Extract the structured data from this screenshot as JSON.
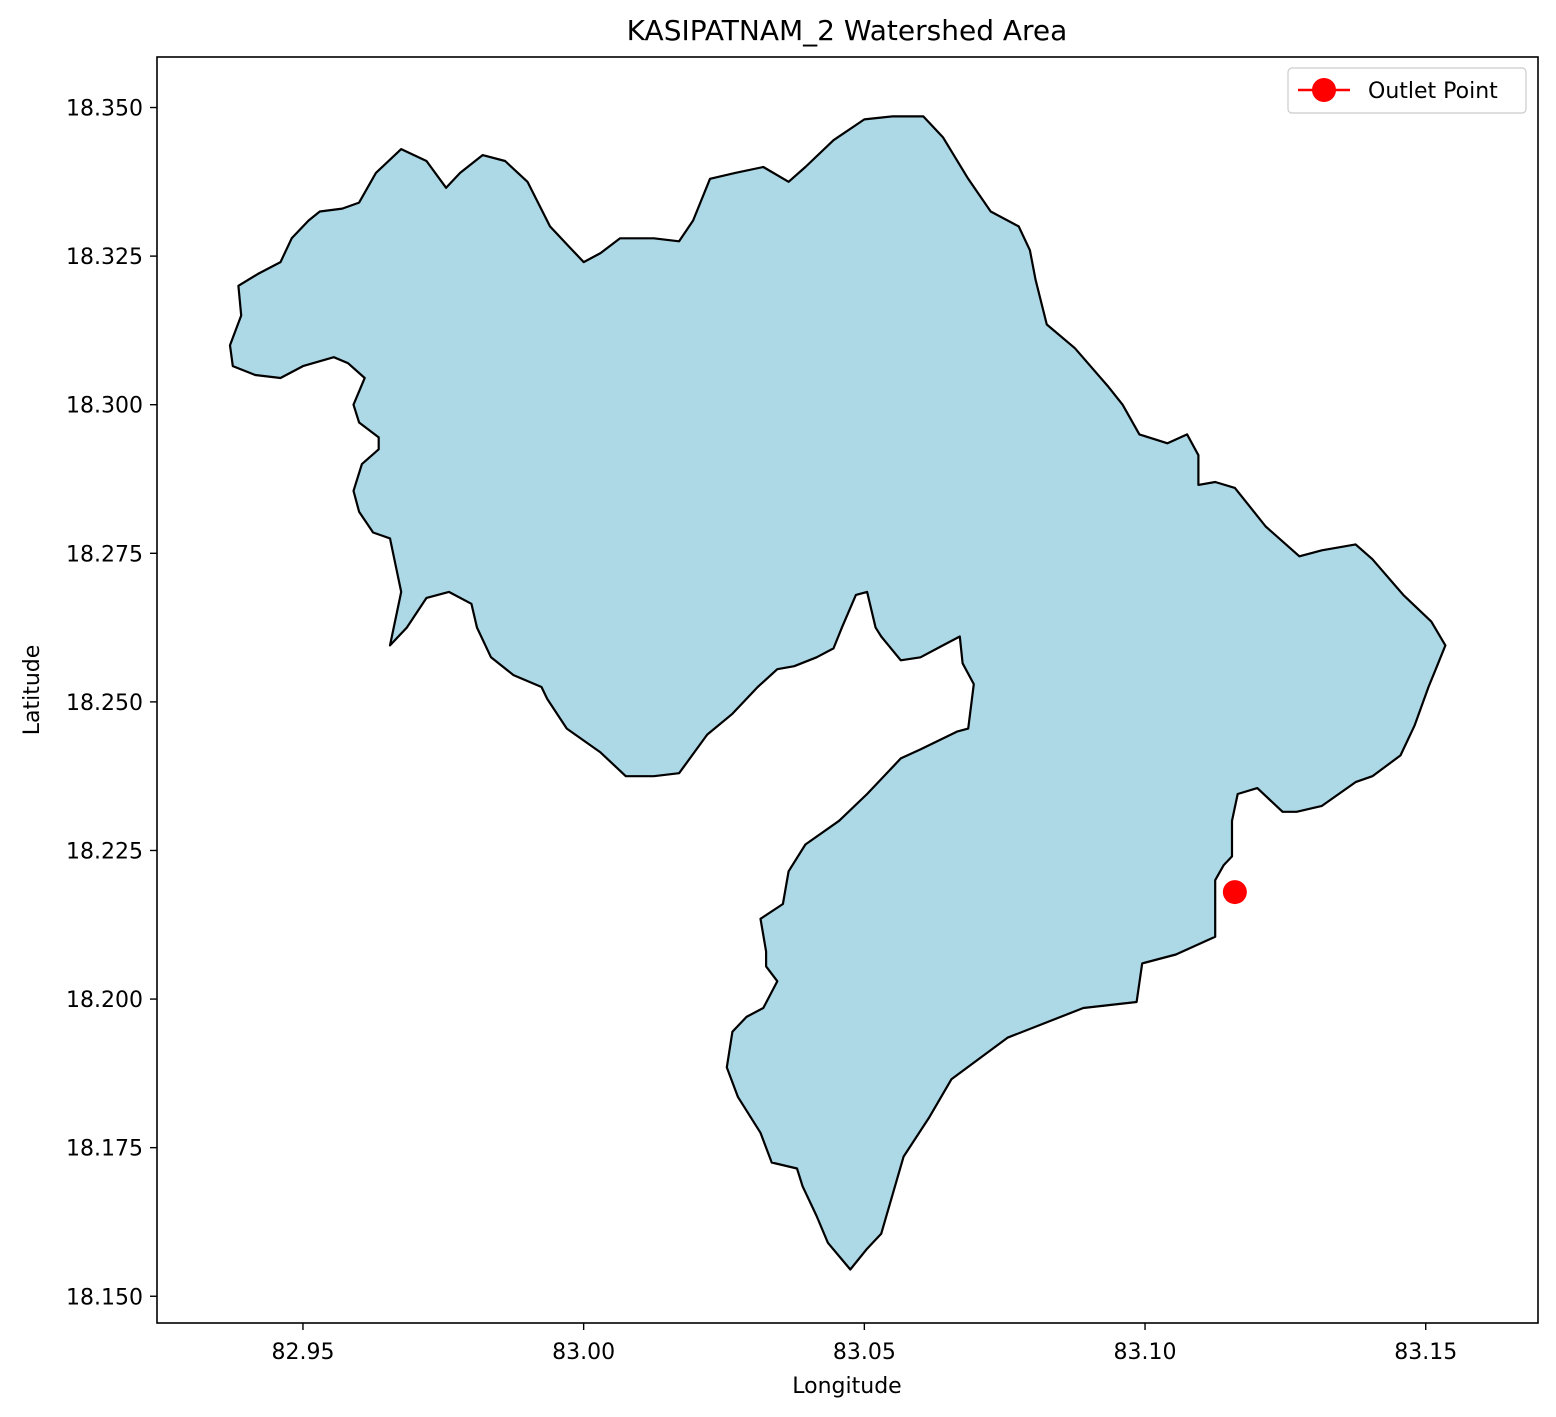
{
  "chart_data": {
    "type": "map",
    "title": "KASIPATNAM_2 Watershed Area",
    "xlabel": "Longitude",
    "ylabel": "Latitude",
    "xlim": [
      82.924,
      83.17
    ],
    "ylim": [
      18.1455,
      18.3585
    ],
    "x_ticks": [
      82.95,
      83.0,
      83.05,
      83.1,
      83.15
    ],
    "x_tick_labels": [
      "82.95",
      "83.00",
      "83.05",
      "83.10",
      "83.15"
    ],
    "y_ticks": [
      18.15,
      18.175,
      18.2,
      18.225,
      18.25,
      18.275,
      18.3,
      18.325,
      18.35
    ],
    "y_tick_labels": [
      "18.150",
      "18.175",
      "18.200",
      "18.225",
      "18.250",
      "18.275",
      "18.300",
      "18.325",
      "18.350"
    ],
    "grid": false,
    "legend": {
      "position": "top-right",
      "entries": [
        {
          "label": "Outlet Point",
          "marker": "circle",
          "color": "#ff0000"
        }
      ]
    },
    "watershed": {
      "fill_color": "#add8e6",
      "edge_color": "#000000",
      "boundary": [
        [
          82.937,
          18.31
        ],
        [
          82.939,
          18.315
        ],
        [
          82.9385,
          18.32
        ],
        [
          82.942,
          18.322
        ],
        [
          82.946,
          18.324
        ],
        [
          82.948,
          18.328
        ],
        [
          82.951,
          18.331
        ],
        [
          82.953,
          18.3325
        ],
        [
          82.957,
          18.333
        ],
        [
          82.96,
          18.334
        ],
        [
          82.963,
          18.339
        ],
        [
          82.9675,
          18.343
        ],
        [
          82.972,
          18.341
        ],
        [
          82.9755,
          18.3365
        ],
        [
          82.978,
          18.339
        ],
        [
          82.982,
          18.342
        ],
        [
          82.986,
          18.341
        ],
        [
          82.99,
          18.3375
        ],
        [
          82.994,
          18.33
        ],
        [
          82.9975,
          18.3265
        ],
        [
          83.0,
          18.324
        ],
        [
          83.003,
          18.3255
        ],
        [
          83.0065,
          18.328
        ],
        [
          83.0125,
          18.328
        ],
        [
          83.017,
          18.3275
        ],
        [
          83.0195,
          18.331
        ],
        [
          83.0225,
          18.338
        ],
        [
          83.027,
          18.339
        ],
        [
          83.032,
          18.34
        ],
        [
          83.0365,
          18.3375
        ],
        [
          83.0395,
          18.34
        ],
        [
          83.0445,
          18.3445
        ],
        [
          83.05,
          18.348
        ],
        [
          83.055,
          18.3485
        ],
        [
          83.0605,
          18.3485
        ],
        [
          83.064,
          18.345
        ],
        [
          83.0685,
          18.338
        ],
        [
          83.0725,
          18.3325
        ],
        [
          83.0775,
          18.33
        ],
        [
          83.0795,
          18.326
        ],
        [
          83.0805,
          18.321
        ],
        [
          83.0825,
          18.3135
        ],
        [
          83.0875,
          18.3095
        ],
        [
          83.0935,
          18.303
        ],
        [
          83.096,
          18.3
        ],
        [
          83.099,
          18.295
        ],
        [
          83.104,
          18.2935
        ],
        [
          83.1075,
          18.295
        ],
        [
          83.1095,
          18.2915
        ],
        [
          83.1095,
          18.2865
        ],
        [
          83.1125,
          18.287
        ],
        [
          83.116,
          18.286
        ],
        [
          83.1215,
          18.2795
        ],
        [
          83.1275,
          18.2745
        ],
        [
          83.1315,
          18.2755
        ],
        [
          83.1375,
          18.2765
        ],
        [
          83.1405,
          18.274
        ],
        [
          83.146,
          18.268
        ],
        [
          83.151,
          18.2635
        ],
        [
          83.1535,
          18.2595
        ],
        [
          83.152,
          18.256
        ],
        [
          83.1505,
          18.2525
        ],
        [
          83.148,
          18.246
        ],
        [
          83.1455,
          18.241
        ],
        [
          83.1405,
          18.2375
        ],
        [
          83.1375,
          18.2365
        ],
        [
          83.1315,
          18.2325
        ],
        [
          83.127,
          18.2315
        ],
        [
          83.1245,
          18.2315
        ],
        [
          83.12,
          18.2355
        ],
        [
          83.1165,
          18.2345
        ],
        [
          83.1155,
          18.23
        ],
        [
          83.1155,
          18.224
        ],
        [
          83.114,
          18.2225
        ],
        [
          83.1125,
          18.22
        ],
        [
          83.1125,
          18.2145
        ],
        [
          83.1125,
          18.2105
        ],
        [
          83.1055,
          18.2075
        ],
        [
          83.0995,
          18.206
        ],
        [
          83.0985,
          18.1995
        ],
        [
          83.089,
          18.1985
        ],
        [
          83.0755,
          18.1935
        ],
        [
          83.0655,
          18.1865
        ],
        [
          83.0615,
          18.18
        ],
        [
          83.057,
          18.1735
        ],
        [
          83.053,
          18.1605
        ],
        [
          83.0505,
          18.158
        ],
        [
          83.0475,
          18.1545
        ],
        [
          83.0435,
          18.159
        ],
        [
          83.0415,
          18.1635
        ],
        [
          83.039,
          18.1685
        ],
        [
          83.038,
          18.1715
        ],
        [
          83.0335,
          18.1725
        ],
        [
          83.0315,
          18.1775
        ],
        [
          83.0275,
          18.1835
        ],
        [
          83.0255,
          18.1885
        ],
        [
          83.0265,
          18.1945
        ],
        [
          83.029,
          18.197
        ],
        [
          83.032,
          18.1985
        ],
        [
          83.0345,
          18.203
        ],
        [
          83.0325,
          18.2055
        ],
        [
          83.0325,
          18.208
        ],
        [
          83.0315,
          18.2135
        ],
        [
          83.0355,
          18.216
        ],
        [
          83.0365,
          18.2215
        ],
        [
          83.0395,
          18.226
        ],
        [
          83.0455,
          18.23
        ],
        [
          83.0505,
          18.2345
        ],
        [
          83.0565,
          18.2405
        ],
        [
          83.06,
          18.242
        ],
        [
          83.0665,
          18.245
        ],
        [
          83.0685,
          18.2455
        ],
        [
          83.0695,
          18.253
        ],
        [
          83.0675,
          18.2565
        ],
        [
          83.067,
          18.261
        ],
        [
          83.064,
          18.2595
        ],
        [
          83.06,
          18.2575
        ],
        [
          83.0565,
          18.257
        ],
        [
          83.053,
          18.261
        ],
        [
          83.052,
          18.2625
        ],
        [
          83.0505,
          18.2685
        ],
        [
          83.0485,
          18.268
        ],
        [
          83.046,
          18.2625
        ],
        [
          83.0445,
          18.259
        ],
        [
          83.0415,
          18.2575
        ],
        [
          83.0375,
          18.256
        ],
        [
          83.0345,
          18.2555
        ],
        [
          83.031,
          18.2525
        ],
        [
          83.0265,
          18.248
        ],
        [
          83.022,
          18.2445
        ],
        [
          83.017,
          18.238
        ],
        [
          83.0125,
          18.2375
        ],
        [
          83.0075,
          18.2375
        ],
        [
          83.003,
          18.2415
        ],
        [
          82.997,
          18.2455
        ],
        [
          82.9935,
          18.2505
        ],
        [
          82.9925,
          18.2525
        ],
        [
          82.9875,
          18.2545
        ],
        [
          82.9835,
          18.2575
        ],
        [
          82.981,
          18.2625
        ],
        [
          82.98,
          18.2665
        ],
        [
          82.976,
          18.2685
        ],
        [
          82.972,
          18.2675
        ],
        [
          82.9685,
          18.2625
        ],
        [
          82.9655,
          18.2595
        ],
        [
          82.9675,
          18.2685
        ],
        [
          82.9665,
          18.273
        ],
        [
          82.9655,
          18.2775
        ],
        [
          82.9625,
          18.2785
        ],
        [
          82.96,
          18.282
        ],
        [
          82.959,
          18.2855
        ],
        [
          82.9605,
          18.29
        ],
        [
          82.9635,
          18.2925
        ],
        [
          82.9635,
          18.2945
        ],
        [
          82.96,
          18.297
        ],
        [
          82.959,
          18.3
        ],
        [
          82.961,
          18.3045
        ],
        [
          82.958,
          18.307
        ],
        [
          82.9555,
          18.308
        ],
        [
          82.95,
          18.3065
        ],
        [
          82.946,
          18.3045
        ],
        [
          82.9415,
          18.305
        ],
        [
          82.9375,
          18.3065
        ]
      ]
    },
    "outlet_point": {
      "x": 83.116,
      "y": 18.218,
      "color": "#ff0000"
    }
  }
}
